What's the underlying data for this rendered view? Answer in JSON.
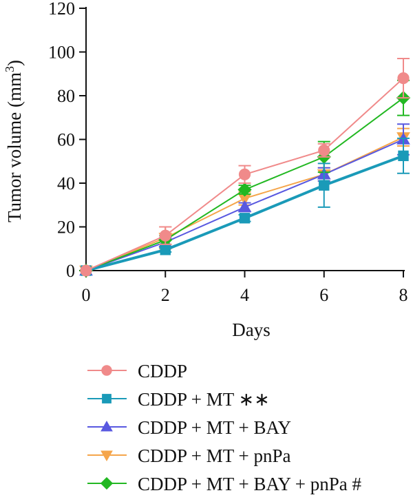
{
  "chart_data": {
    "type": "line",
    "title": "",
    "xlabel": "Days",
    "ylabel_main": "Tumor volume (mm",
    "ylabel_sup": "3",
    "ylabel_close": ")",
    "xlim": [
      0,
      8
    ],
    "ylim": [
      0,
      120
    ],
    "xticks": [
      "0",
      "2",
      "4",
      "6",
      "8"
    ],
    "yticks": [
      "0",
      "20",
      "40",
      "60",
      "80",
      "100",
      "120"
    ],
    "x": [
      0,
      2,
      4,
      6,
      8
    ],
    "legend_position": "bottom",
    "series": [
      {
        "name": "CDDP",
        "color": "#f08a8a",
        "marker": "circle",
        "values": [
          0,
          16,
          44,
          55,
          88
        ],
        "errors": [
          0,
          4,
          4,
          3,
          9
        ]
      },
      {
        "name": "CDDP + MT ∗∗",
        "color": "#1a9ab8",
        "marker": "square",
        "values": [
          0,
          9.5,
          24,
          39,
          52.5
        ],
        "errors": [
          0,
          1,
          1.5,
          10,
          8
        ]
      },
      {
        "name": "CDDP + MT + BAY",
        "color": "#5858e0",
        "marker": "triangle-up",
        "values": [
          0,
          13,
          29,
          44,
          60
        ],
        "errors": [
          0,
          2,
          2,
          3,
          7
        ]
      },
      {
        "name": "CDDP + MT + pnPa",
        "color": "#f5a54a",
        "marker": "triangle-down",
        "values": [
          0,
          15,
          33,
          44,
          61
        ],
        "errors": [
          0,
          5,
          3,
          3,
          4
        ]
      },
      {
        "name": "CDDP + MT + BAY + pnPa #",
        "color": "#22b822",
        "marker": "diamond",
        "values": [
          0,
          14,
          37,
          52,
          79
        ],
        "errors": [
          0,
          2,
          2,
          7,
          8
        ]
      }
    ]
  }
}
